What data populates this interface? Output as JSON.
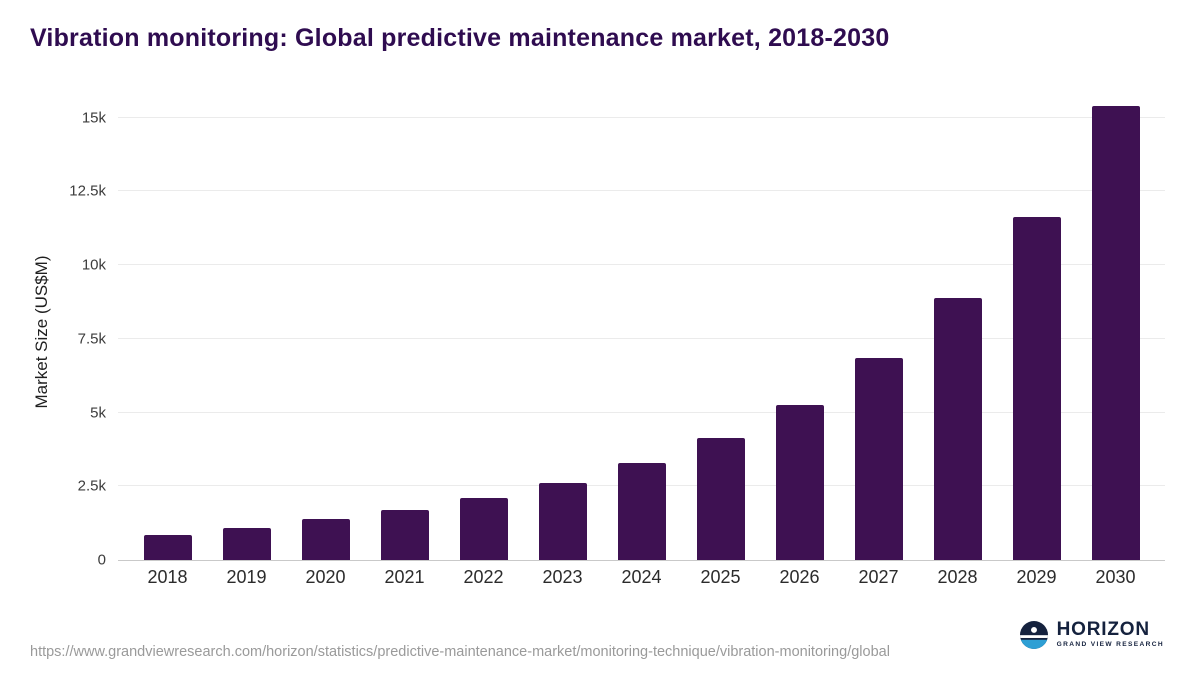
{
  "title": "Vibration monitoring: Global predictive maintenance market, 2018-2030",
  "chart_data": {
    "type": "bar",
    "title": "Vibration monitoring: Global predictive maintenance market, 2018-2030",
    "xlabel": "",
    "ylabel": "Market Size (US$M)",
    "categories": [
      "2018",
      "2019",
      "2020",
      "2021",
      "2022",
      "2023",
      "2024",
      "2025",
      "2026",
      "2027",
      "2028",
      "2029",
      "2030"
    ],
    "values": [
      850,
      1100,
      1390,
      1700,
      2100,
      2620,
      3300,
      4150,
      5270,
      6850,
      8900,
      11640,
      15400
    ],
    "ylim": [
      0,
      15500
    ],
    "yticks": {
      "values": [
        0,
        2500,
        5000,
        7500,
        10000,
        12500,
        15000
      ],
      "labels": [
        "0",
        "2.5k",
        "5k",
        "7.5k",
        "10k",
        "12.5k",
        "15k"
      ]
    },
    "bar_color": "#3e1152",
    "grid": true,
    "legend_position": "none"
  },
  "footer": {
    "source_url": "https://www.grandviewresearch.com/horizon/statistics/predictive-maintenance-market/monitoring-technique/vibration-monitoring/global",
    "logo": {
      "name": "HORIZON",
      "subtitle": "GRAND VIEW RESEARCH"
    }
  },
  "colors": {
    "title": "#2f0c50",
    "bar": "#3e1152",
    "gridline": "#ebebeb",
    "axis": "#c9c9c9",
    "tick_text": "#3c3c3c",
    "source_text": "#9a9a9a",
    "logo_navy": "#15223e",
    "logo_blue": "#2e9fd4"
  }
}
